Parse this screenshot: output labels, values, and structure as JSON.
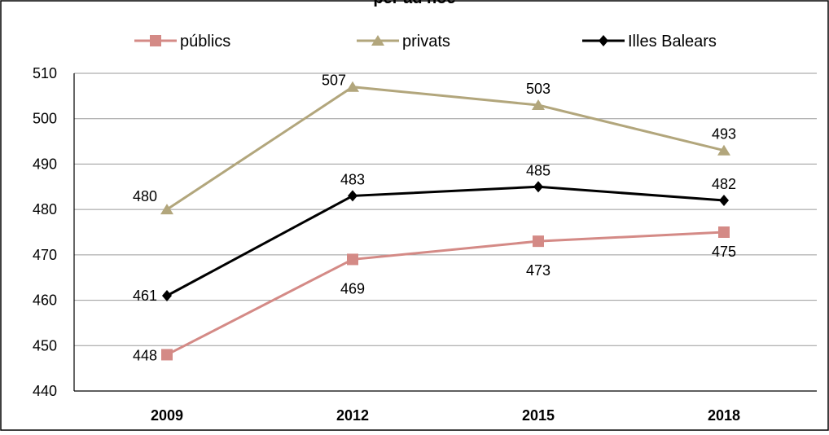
{
  "chart_data": {
    "type": "line",
    "title": "per ad hoc",
    "categories": [
      "2009",
      "2012",
      "2015",
      "2018"
    ],
    "ylim": [
      440,
      510
    ],
    "yticks": [
      440,
      450,
      460,
      470,
      480,
      490,
      500,
      510
    ],
    "grid": true,
    "legend_position": "top",
    "series": [
      {
        "name": "públics",
        "values": [
          448,
          469,
          473,
          475
        ],
        "color": "#d48a86",
        "marker": "square",
        "label_position": "below-left"
      },
      {
        "name": "privats",
        "values": [
          480,
          507,
          503,
          493
        ],
        "color": "#b2a67c",
        "marker": "triangle",
        "label_position": "above-left"
      },
      {
        "name": "Illes Balears",
        "values": [
          461,
          483,
          485,
          482
        ],
        "color": "#000000",
        "marker": "diamond",
        "label_position": "above"
      }
    ]
  }
}
